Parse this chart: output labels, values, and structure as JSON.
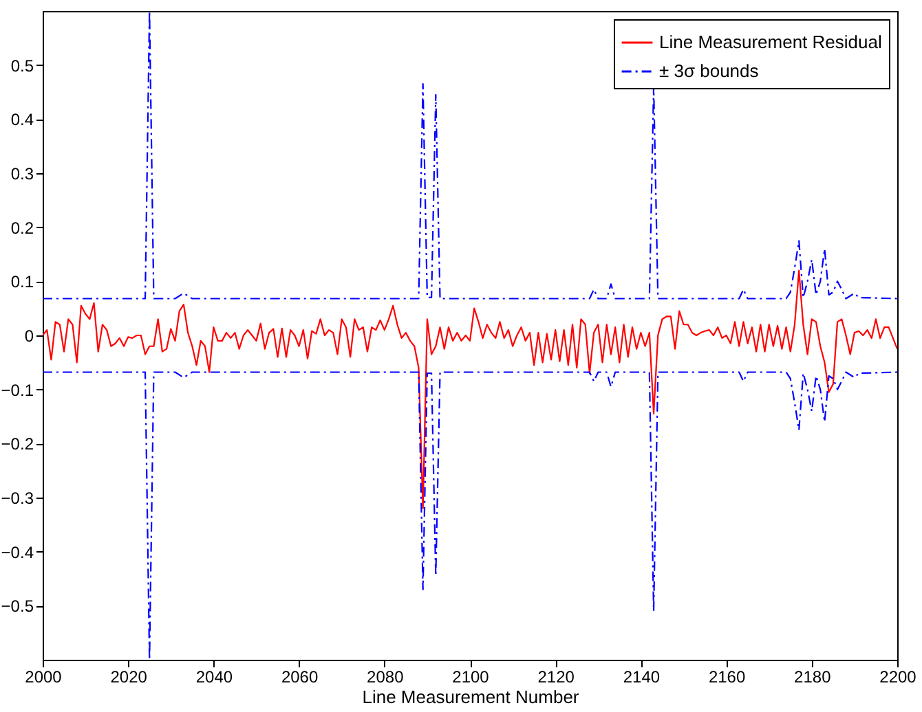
{
  "chart_data": {
    "type": "line",
    "xlabel": "Line Measurement Number",
    "xlim": [
      2000,
      2200
    ],
    "xticks": [
      2000,
      2020,
      2040,
      2060,
      2080,
      2100,
      2120,
      2140,
      2160,
      2180,
      2200
    ],
    "ylim": [
      -0.6,
      0.6
    ],
    "yticks": [
      -0.5,
      -0.4,
      -0.3,
      -0.2,
      -0.1,
      0,
      0.1,
      0.2,
      0.3,
      0.4,
      0.5
    ],
    "legend": "top right",
    "x": [
      2000,
      2001,
      2002,
      2003,
      2004,
      2005,
      2006,
      2007,
      2008,
      2009,
      2010,
      2011,
      2012,
      2013,
      2014,
      2015,
      2016,
      2017,
      2018,
      2019,
      2020,
      2021,
      2022,
      2023,
      2024,
      2025,
      2026,
      2027,
      2028,
      2029,
      2030,
      2031,
      2032,
      2033,
      2034,
      2035,
      2036,
      2037,
      2038,
      2039,
      2040,
      2041,
      2042,
      2043,
      2044,
      2045,
      2046,
      2047,
      2048,
      2049,
      2050,
      2051,
      2052,
      2053,
      2054,
      2055,
      2056,
      2057,
      2058,
      2059,
      2060,
      2061,
      2062,
      2063,
      2064,
      2065,
      2066,
      2067,
      2068,
      2069,
      2070,
      2071,
      2072,
      2073,
      2074,
      2075,
      2076,
      2077,
      2078,
      2079,
      2080,
      2081,
      2082,
      2083,
      2084,
      2085,
      2086,
      2087,
      2088,
      2089,
      2090,
      2091,
      2092,
      2093,
      2094,
      2095,
      2096,
      2097,
      2098,
      2099,
      2100,
      2101,
      2102,
      2103,
      2104,
      2105,
      2106,
      2107,
      2108,
      2109,
      2110,
      2111,
      2112,
      2113,
      2114,
      2115,
      2116,
      2117,
      2118,
      2119,
      2120,
      2121,
      2122,
      2123,
      2124,
      2125,
      2126,
      2127,
      2128,
      2129,
      2130,
      2131,
      2132,
      2133,
      2134,
      2135,
      2136,
      2137,
      2138,
      2139,
      2140,
      2141,
      2142,
      2143,
      2144,
      2145,
      2146,
      2147,
      2148,
      2149,
      2150,
      2151,
      2152,
      2153,
      2154,
      2155,
      2156,
      2157,
      2158,
      2159,
      2160,
      2161,
      2162,
      2163,
      2164,
      2165,
      2166,
      2167,
      2168,
      2169,
      2170,
      2171,
      2172,
      2173,
      2174,
      2175,
      2176,
      2177,
      2178,
      2179,
      2180,
      2181,
      2182,
      2183,
      2184,
      2185,
      2186,
      2187,
      2188,
      2189,
      2190,
      2191,
      2192,
      2193,
      2194,
      2195,
      2196,
      2197,
      2198,
      2199,
      2200
    ],
    "series": [
      {
        "name": "Line Measurement Residual",
        "color": "#ff0000",
        "line_style": "solid",
        "values": [
          0,
          0.01,
          -0.045,
          0.025,
          0.02,
          -0.03,
          0.03,
          0.02,
          -0.05,
          0.055,
          0.04,
          0.03,
          0.06,
          -0.03,
          0.02,
          0.01,
          -0.02,
          -0.015,
          -0.005,
          -0.02,
          -0.003,
          -0.005,
          0,
          0,
          -0.035,
          -0.02,
          -0.02,
          0.03,
          -0.03,
          -0.025,
          0.012,
          -0.01,
          0.045,
          0.057,
          0.005,
          -0.02,
          -0.055,
          -0.01,
          -0.02,
          -0.068,
          0.015,
          -0.01,
          -0.01,
          0.005,
          -0.005,
          0.005,
          -0.025,
          0,
          0.01,
          0,
          -0.01,
          0.022,
          -0.025,
          0.005,
          0.012,
          -0.04,
          0.013,
          -0.04,
          0.01,
          0,
          -0.02,
          0.01,
          -0.043,
          0.008,
          0.003,
          0.03,
          0,
          0.01,
          0.005,
          -0.035,
          0.03,
          0.015,
          -0.04,
          0.03,
          0.01,
          0.015,
          -0.03,
          0.015,
          0.01,
          0.028,
          0.01,
          0.03,
          0.055,
          0.02,
          -0.005,
          0.005,
          -0.01,
          -0.02,
          -0.06,
          -0.32,
          0.03,
          -0.035,
          -0.02,
          0.015,
          -0.025,
          0.015,
          -0.01,
          0.005,
          -0.01,
          0,
          -0.01,
          0.05,
          0.025,
          -0.005,
          0.02,
          0.005,
          -0.005,
          0.025,
          -0.005,
          0.01,
          -0.02,
          0,
          0.015,
          -0.01,
          0.005,
          -0.055,
          0.005,
          -0.05,
          0.003,
          -0.045,
          0.01,
          -0.048,
          0.01,
          -0.055,
          0.02,
          -0.06,
          0.03,
          0.02,
          -0.07,
          0.005,
          0.02,
          -0.05,
          0.02,
          -0.035,
          0.015,
          -0.05,
          0.02,
          -0.04,
          0.015,
          -0.025,
          0.005,
          -0.02,
          0.005,
          -0.145,
          0,
          0.03,
          0.035,
          0.035,
          -0.025,
          0.045,
          0.02,
          0.02,
          0.005,
          0,
          0.005,
          0.008,
          0.01,
          0,
          0.015,
          -0.005,
          0,
          -0.015,
          0.025,
          -0.02,
          0.025,
          -0.015,
          0.015,
          -0.03,
          0.02,
          -0.03,
          0.02,
          -0.02,
          0.018,
          -0.025,
          0.015,
          -0.03,
          0.02,
          0.12,
          0.02,
          -0.035,
          0.03,
          0.025,
          -0.02,
          -0.05,
          -0.105,
          -0.09,
          0.025,
          0.03,
          0,
          -0.035,
          0.005,
          0.008,
          0,
          0.01,
          -0.005,
          0.03,
          -0.005,
          0.015,
          0.015,
          -0.005,
          -0.025
        ]
      },
      {
        "name": "± 3σ bounds",
        "color": "#0000ff",
        "line_style": "dashdot",
        "x": [
          2000,
          2024,
          2025,
          2026,
          2031,
          2033,
          2035,
          2088,
          2089,
          2090,
          2091,
          2092,
          2093,
          2128,
          2129,
          2130,
          2132,
          2133,
          2134,
          2142,
          2143,
          2144,
          2163,
          2164,
          2165,
          2174,
          2175,
          2176,
          2177,
          2178,
          2179,
          2180,
          2181,
          2182,
          2183,
          2184,
          2185,
          2186,
          2187,
          2188,
          2190,
          2191,
          2200
        ],
        "values": [
          0.068,
          0.068,
          0.6,
          0.068,
          0.068,
          0.078,
          0.068,
          0.068,
          0.465,
          0.07,
          0.07,
          0.445,
          0.068,
          0.068,
          0.085,
          0.068,
          0.068,
          0.095,
          0.068,
          0.068,
          0.46,
          0.068,
          0.068,
          0.085,
          0.068,
          0.068,
          0.08,
          0.125,
          0.175,
          0.07,
          0.1,
          0.14,
          0.075,
          0.1,
          0.16,
          0.075,
          0.08,
          0.1,
          0.085,
          0.068,
          0.078,
          0.07,
          0.068
        ]
      },
      {
        "color": "#0000ff",
        "line_style": "dashdot",
        "x": [
          2000,
          2024,
          2025,
          2026,
          2031,
          2033,
          2035,
          2088,
          2089,
          2090,
          2091,
          2092,
          2093,
          2128,
          2129,
          2130,
          2132,
          2133,
          2134,
          2142,
          2143,
          2144,
          2163,
          2164,
          2165,
          2174,
          2175,
          2176,
          2177,
          2178,
          2179,
          2180,
          2181,
          2182,
          2183,
          2184,
          2185,
          2186,
          2187,
          2188,
          2190,
          2191,
          2200
        ],
        "values": [
          -0.068,
          -0.068,
          -0.6,
          -0.068,
          -0.068,
          -0.078,
          -0.068,
          -0.068,
          -0.47,
          -0.07,
          -0.07,
          -0.445,
          -0.068,
          -0.068,
          -0.085,
          -0.068,
          -0.068,
          -0.095,
          -0.068,
          -0.068,
          -0.51,
          -0.068,
          -0.068,
          -0.085,
          -0.068,
          -0.068,
          -0.08,
          -0.125,
          -0.175,
          -0.07,
          -0.1,
          -0.14,
          -0.075,
          -0.1,
          -0.16,
          -0.075,
          -0.08,
          -0.1,
          -0.085,
          -0.068,
          -0.078,
          -0.07,
          -0.068
        ]
      }
    ]
  }
}
